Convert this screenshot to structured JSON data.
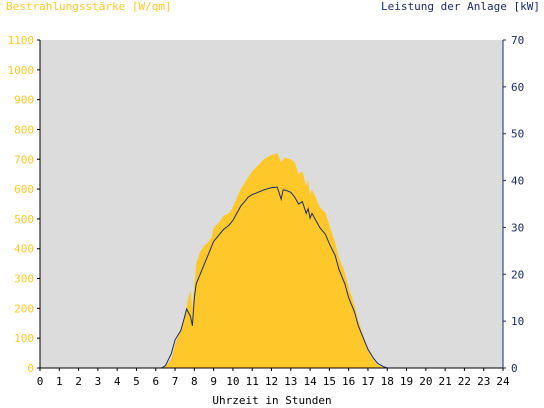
{
  "chart_data": {
    "type": "area",
    "ylabel_left": "Bestrahlungsstärke [W/qm]",
    "ylabel_right": "Leistung der Anlage [kW]",
    "xlabel": "Uhrzeit in Stunden",
    "xlim": [
      0,
      24
    ],
    "ylim_left": [
      0,
      1100
    ],
    "ylim_right": [
      0,
      70
    ],
    "xticks": [
      "0",
      "1",
      "2",
      "3",
      "4",
      "5",
      "6",
      "7",
      "8",
      "9",
      "10",
      "11",
      "12",
      "13",
      "14",
      "15",
      "16",
      "17",
      "18",
      "19",
      "20",
      "21",
      "22",
      "23",
      "24"
    ],
    "yticks_left": [
      "0",
      "100",
      "200",
      "300",
      "400",
      "500",
      "600",
      "700",
      "800",
      "900",
      "1000",
      "1100"
    ],
    "yticks_right": [
      "0",
      "10",
      "20",
      "30",
      "40",
      "50",
      "60",
      "70"
    ],
    "grid": false,
    "series": [
      {
        "name": "Bestrahlungsstärke [W/qm]",
        "axis": "left",
        "kind": "area",
        "x": [
          0,
          6.3,
          6.5,
          6.8,
          7.0,
          7.3,
          7.5,
          7.7,
          7.8,
          7.9,
          8.0,
          8.1,
          8.3,
          8.5,
          8.7,
          8.9,
          9.0,
          9.3,
          9.5,
          9.8,
          10.0,
          10.2,
          10.4,
          10.6,
          10.8,
          11.0,
          11.3,
          11.6,
          12.0,
          12.3,
          12.5,
          12.6,
          12.7,
          13.0,
          13.2,
          13.4,
          13.6,
          13.8,
          13.9,
          14.0,
          14.1,
          14.3,
          14.5,
          14.8,
          15.0,
          15.3,
          15.5,
          15.8,
          16.0,
          16.3,
          16.5,
          16.8,
          17.0,
          17.3,
          17.5,
          17.8,
          18.0,
          18.3,
          18.5,
          18.8,
          19.0,
          24
        ],
        "values": [
          0,
          0,
          5,
          30,
          80,
          130,
          170,
          240,
          260,
          200,
          280,
          350,
          390,
          410,
          420,
          440,
          470,
          490,
          510,
          520,
          540,
          570,
          600,
          620,
          640,
          660,
          680,
          700,
          715,
          720,
          690,
          700,
          705,
          700,
          690,
          650,
          660,
          610,
          630,
          580,
          600,
          570,
          540,
          520,
          480,
          420,
          370,
          320,
          270,
          210,
          160,
          100,
          60,
          25,
          10,
          3,
          0,
          0,
          0,
          0,
          0,
          0
        ]
      },
      {
        "name": "Leistung der Anlage [kW]",
        "axis": "right",
        "kind": "line",
        "x": [
          0,
          6.3,
          6.5,
          6.8,
          7.0,
          7.3,
          7.5,
          7.6,
          7.8,
          7.9,
          8.0,
          8.1,
          8.3,
          8.5,
          8.7,
          8.9,
          9.0,
          9.3,
          9.5,
          9.8,
          10.0,
          10.2,
          10.4,
          10.6,
          10.8,
          11.0,
          11.3,
          11.6,
          12.0,
          12.3,
          12.5,
          12.6,
          12.7,
          13.0,
          13.2,
          13.4,
          13.6,
          13.8,
          13.9,
          14.0,
          14.1,
          14.3,
          14.5,
          14.8,
          15.0,
          15.3,
          15.5,
          15.8,
          16.0,
          16.3,
          16.5,
          16.8,
          17.0,
          17.3,
          17.5,
          17.8,
          18.0,
          18.3,
          18.5,
          18.8,
          19.0,
          24
        ],
        "values": [
          0,
          0,
          0.5,
          3,
          6,
          8,
          11,
          12.6,
          11,
          9,
          15,
          18,
          20,
          22,
          24,
          26,
          27,
          28.5,
          29.5,
          30.5,
          31.5,
          33,
          34.5,
          35.5,
          36.5,
          37,
          37.5,
          38,
          38.5,
          38.6,
          36,
          38,
          38,
          37.5,
          36.5,
          35,
          35.5,
          33,
          34,
          32,
          33,
          31.5,
          30,
          28.5,
          26.5,
          24,
          21,
          18,
          15,
          12,
          9,
          6,
          4,
          2,
          1,
          0.3,
          0,
          0,
          0,
          0,
          0,
          0
        ]
      }
    ],
    "colors": {
      "area_fill": "#ffc82a",
      "line": "#1b2a66",
      "plot_bg": "#dcdcdc",
      "left_axis_text": "#ffc82a",
      "right_axis_text": "#1b2a66"
    }
  }
}
